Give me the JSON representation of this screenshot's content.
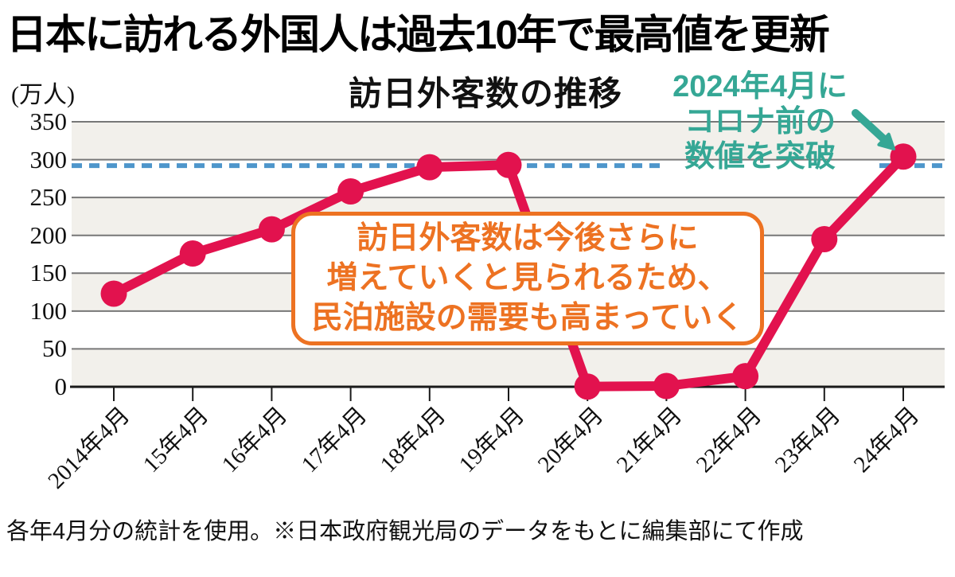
{
  "header": {
    "title": "日本に訪れる外国人は過去10年で最高値を更新"
  },
  "chart_data": {
    "type": "line",
    "title": "訪日外客数の推移",
    "unit_label": "(万人)",
    "categories": [
      "2014年4月",
      "15年4月",
      "16年4月",
      "17年4月",
      "18年4月",
      "19年4月",
      "20年4月",
      "21年4月",
      "22年4月",
      "23年4月",
      "24年4月"
    ],
    "values": [
      123,
      176,
      208,
      258,
      290,
      293,
      0.3,
      1,
      14,
      195,
      304
    ],
    "xlabel": "",
    "ylabel": "万人",
    "ylim": [
      0,
      350
    ],
    "yticks": [
      0,
      50,
      100,
      150,
      200,
      250,
      300,
      350
    ],
    "grid": true,
    "legend": "none",
    "reference_line": {
      "value": 292,
      "style": "dashed",
      "meaning": "コロナ前の水準"
    },
    "colors": {
      "line": "#e2124e",
      "reference": "#4e96cb",
      "band": "#f2f0eb",
      "grid": "#777777",
      "axis": "#1a1a1a"
    }
  },
  "annotations": {
    "peak": {
      "lines": [
        "2024年4月に",
        "コロナ前の",
        "数値を突破"
      ],
      "color": "#35a795"
    },
    "callout": {
      "lines": [
        "訪日外客数は今後さらに",
        "増えていくと見られるため、",
        "民泊施設の需要も高まっていく"
      ],
      "color": "#ed7222"
    }
  },
  "footer": {
    "note": "各年4月分の統計を使用。※日本政府観光局のデータをもとに編集部にて作成"
  }
}
